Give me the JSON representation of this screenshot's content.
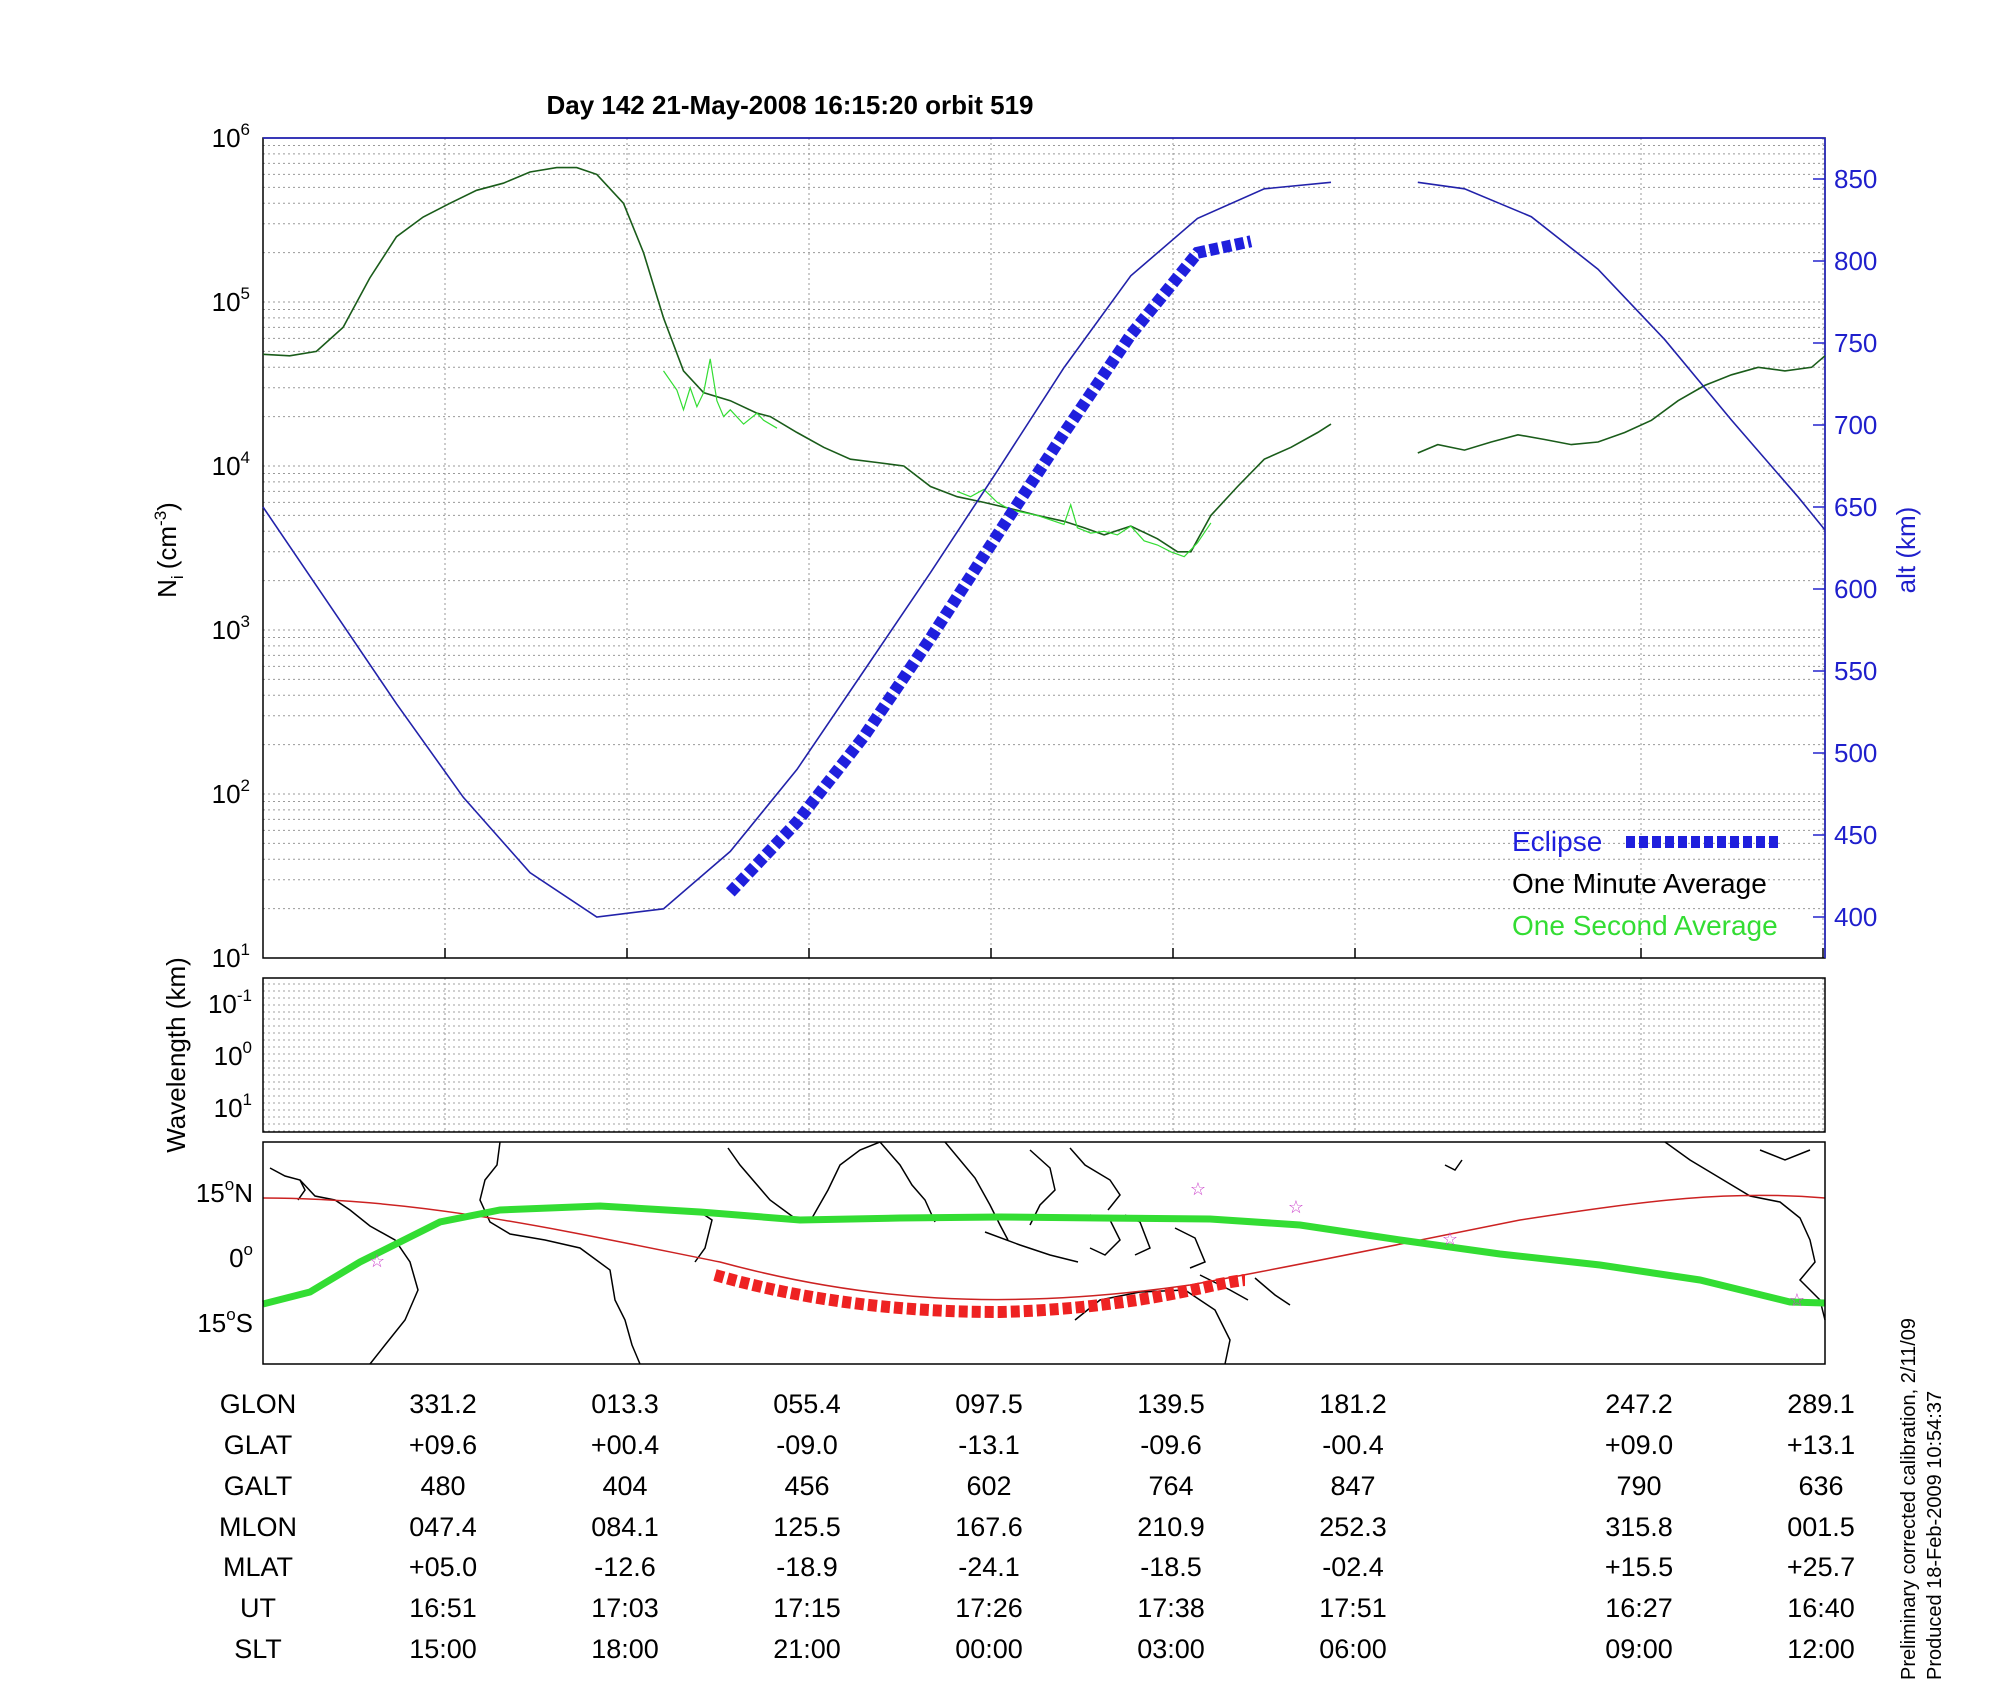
{
  "title": "Day 142  21-May-2008 16:15:20   orbit 519",
  "chart_data": [
    {
      "type": "line",
      "panel": "density",
      "ylabel_left": "N",
      "ylabel_left_sub": "i",
      "ylabel_left_unit": "(cm",
      "ylabel_left_unit_sup": "-3",
      "ylabel_left_close": ")",
      "ylabel_right": "alt (km)",
      "y_left_scale": "log",
      "y_left_range": [
        10,
        1000000
      ],
      "y_left_ticks": [
        {
          "base": "10",
          "exp": "1"
        },
        {
          "base": "10",
          "exp": "2"
        },
        {
          "base": "10",
          "exp": "3"
        },
        {
          "base": "10",
          "exp": "4"
        },
        {
          "base": "10",
          "exp": "5"
        },
        {
          "base": "10",
          "exp": "6"
        }
      ],
      "y_right_range": [
        375,
        875
      ],
      "y_right_ticks": [
        "400",
        "450",
        "500",
        "550",
        "600",
        "650",
        "700",
        "750",
        "800",
        "850"
      ],
      "grid": true,
      "legend_position": "bottom-right",
      "legend": [
        {
          "label": "Eclipse",
          "color": "#1f1fdd"
        },
        {
          "label": "One Minute Average",
          "color": "#000000"
        },
        {
          "label": "One Second Average",
          "color": "#33dd33"
        }
      ],
      "series": [
        {
          "name": "One Minute Average",
          "color": "#1a5c1a",
          "axis": "left",
          "segments": [
            [
              [
                0,
                48000
              ],
              [
                0.02,
                47000
              ],
              [
                0.04,
                50000
              ],
              [
                0.06,
                70000
              ],
              [
                0.08,
                140000
              ],
              [
                0.1,
                250000
              ],
              [
                0.12,
                330000
              ],
              [
                0.14,
                400000
              ],
              [
                0.16,
                480000
              ],
              [
                0.18,
                530000
              ],
              [
                0.2,
                620000
              ],
              [
                0.22,
                660000
              ],
              [
                0.235,
                660000
              ],
              [
                0.25,
                600000
              ],
              [
                0.27,
                400000
              ],
              [
                0.285,
                200000
              ],
              [
                0.3,
                80000
              ],
              [
                0.315,
                38000
              ],
              [
                0.33,
                28000
              ],
              [
                0.35,
                25000
              ],
              [
                0.37,
                21000
              ],
              [
                0.38,
                20000
              ],
              [
                0.4,
                16000
              ],
              [
                0.42,
                13000
              ],
              [
                0.44,
                11000
              ],
              [
                0.46,
                10500
              ],
              [
                0.48,
                10000
              ],
              [
                0.5,
                7500
              ],
              [
                0.52,
                6500
              ],
              [
                0.54,
                6000
              ],
              [
                0.56,
                5500
              ],
              [
                0.58,
                5000
              ],
              [
                0.6,
                4600
              ],
              [
                0.615,
                4200
              ],
              [
                0.63,
                3800
              ],
              [
                0.65,
                4300
              ],
              [
                0.67,
                3600
              ],
              [
                0.685,
                3000
              ],
              [
                0.695,
                3000
              ],
              [
                0.71,
                5000
              ],
              [
                0.73,
                7500
              ],
              [
                0.75,
                11000
              ],
              [
                0.77,
                13000
              ],
              [
                0.79,
                16000
              ],
              [
                0.8,
                18000
              ]
            ],
            [
              [
                0.865,
                12000
              ],
              [
                0.88,
                13500
              ],
              [
                0.9,
                12500
              ],
              [
                0.92,
                14000
              ],
              [
                0.94,
                15500
              ],
              [
                0.96,
                14500
              ],
              [
                0.98,
                13500
              ],
              [
                1.0,
                14000
              ],
              [
                1.02,
                16000
              ],
              [
                1.04,
                19000
              ],
              [
                1.06,
                25000
              ],
              [
                1.08,
                31000
              ],
              [
                1.1,
                36000
              ],
              [
                1.12,
                40000
              ],
              [
                1.14,
                38000
              ],
              [
                1.16,
                40000
              ],
              [
                1.17,
                47000
              ]
            ]
          ]
        },
        {
          "name": "One Second Average",
          "color": "#33dd33",
          "axis": "left",
          "segments": [
            [
              [
                0.3,
                38000
              ],
              [
                0.31,
                29000
              ],
              [
                0.315,
                22000
              ],
              [
                0.32,
                30000
              ],
              [
                0.325,
                23000
              ],
              [
                0.33,
                28000
              ],
              [
                0.335,
                45000
              ],
              [
                0.34,
                25000
              ],
              [
                0.345,
                20000
              ],
              [
                0.35,
                22000
              ],
              [
                0.36,
                18000
              ],
              [
                0.37,
                21000
              ],
              [
                0.375,
                19000
              ],
              [
                0.385,
                17000
              ]
            ],
            [
              [
                0.52,
                7000
              ],
              [
                0.53,
                6500
              ],
              [
                0.54,
                7200
              ],
              [
                0.55,
                6000
              ],
              [
                0.56,
                5400
              ],
              [
                0.58,
                5000
              ],
              [
                0.6,
                4400
              ],
              [
                0.605,
                5800
              ],
              [
                0.61,
                4200
              ],
              [
                0.62,
                3900
              ],
              [
                0.63,
                4000
              ],
              [
                0.64,
                3800
              ],
              [
                0.65,
                4300
              ],
              [
                0.66,
                3500
              ],
              [
                0.67,
                3300
              ],
              [
                0.68,
                3000
              ],
              [
                0.69,
                2800
              ],
              [
                0.7,
                3400
              ],
              [
                0.71,
                4500
              ]
            ]
          ]
        },
        {
          "name": "alt",
          "color": "#2222aa",
          "axis": "right",
          "segments": [
            [
              [
                0,
                650
              ],
              [
                0.05,
                590
              ],
              [
                0.1,
                530
              ],
              [
                0.15,
                473
              ],
              [
                0.2,
                427
              ],
              [
                0.25,
                400
              ],
              [
                0.3,
                405
              ],
              [
                0.35,
                440
              ],
              [
                0.4,
                490
              ],
              [
                0.45,
                550
              ],
              [
                0.5,
                610
              ],
              [
                0.55,
                672
              ],
              [
                0.6,
                735
              ],
              [
                0.65,
                791
              ],
              [
                0.7,
                826
              ],
              [
                0.75,
                844
              ],
              [
                0.8,
                848
              ]
            ],
            [
              [
                0.865,
                848
              ],
              [
                0.9,
                844
              ],
              [
                0.95,
                827
              ],
              [
                1.0,
                795
              ],
              [
                1.05,
                752
              ],
              [
                1.1,
                703
              ],
              [
                1.15,
                656
              ],
              [
                1.17,
                636
              ]
            ]
          ]
        },
        {
          "name": "Eclipse",
          "color": "#1f1fdd",
          "axis": "right",
          "style": "thick-dashed",
          "segments": [
            [
              [
                0.35,
                415
              ],
              [
                0.4,
                458
              ],
              [
                0.45,
                510
              ],
              [
                0.5,
                570
              ],
              [
                0.55,
                633
              ],
              [
                0.6,
                695
              ],
              [
                0.65,
                755
              ],
              [
                0.7,
                805
              ],
              [
                0.74,
                812
              ]
            ]
          ]
        }
      ]
    },
    {
      "type": "line",
      "panel": "wavelength",
      "ylabel": "Wavelength (km)",
      "y_scale": "log",
      "y_ticks": [
        {
          "base": "10",
          "exp": "-1"
        },
        {
          "base": "10",
          "exp": "0"
        },
        {
          "base": "10",
          "exp": "1"
        }
      ],
      "grid": true,
      "series": []
    },
    {
      "type": "line",
      "panel": "map",
      "y_ticks": [
        {
          "value": "15",
          "unit": "o",
          "hemi": "N"
        },
        {
          "value": "0",
          "unit": "o",
          "hemi": ""
        },
        {
          "value": "15",
          "unit": "o",
          "hemi": "S"
        }
      ],
      "series": [
        {
          "name": "ground track",
          "color": "#cc2222"
        },
        {
          "name": "magnetic equator",
          "color": "#33dd33"
        },
        {
          "name": "eclipse track",
          "color": "#ee2222"
        }
      ]
    }
  ],
  "table": {
    "labels": [
      "GLON",
      "GLAT",
      "GALT",
      "MLON",
      "MLAT",
      "UT",
      "SLT"
    ],
    "columns": [
      [
        "331.2",
        "+09.6",
        "480",
        "047.4",
        "+05.0",
        "16:51",
        "15:00"
      ],
      [
        "013.3",
        "+00.4",
        "404",
        "084.1",
        "-12.6",
        "17:03",
        "18:00"
      ],
      [
        "055.4",
        "-09.0",
        "456",
        "125.5",
        "-18.9",
        "17:15",
        "21:00"
      ],
      [
        "097.5",
        "-13.1",
        "602",
        "167.6",
        "-24.1",
        "17:26",
        "00:00"
      ],
      [
        "139.5",
        "-09.6",
        "764",
        "210.9",
        "-18.5",
        "17:38",
        "03:00"
      ],
      [
        "181.2",
        "-00.4",
        "847",
        "252.3",
        "-02.4",
        "17:51",
        "06:00"
      ],
      [
        "247.2",
        "+09.0",
        "790",
        "315.8",
        "+15.5",
        "16:27",
        "09:00"
      ],
      [
        "289.1",
        "+13.1",
        "636",
        "001.5",
        "+25.7",
        "16:40",
        "12:00"
      ]
    ]
  },
  "notes": [
    "Preliminary corrected calibration, 2/11/09",
    "Produced 18-Feb-2009 10:54:37"
  ]
}
